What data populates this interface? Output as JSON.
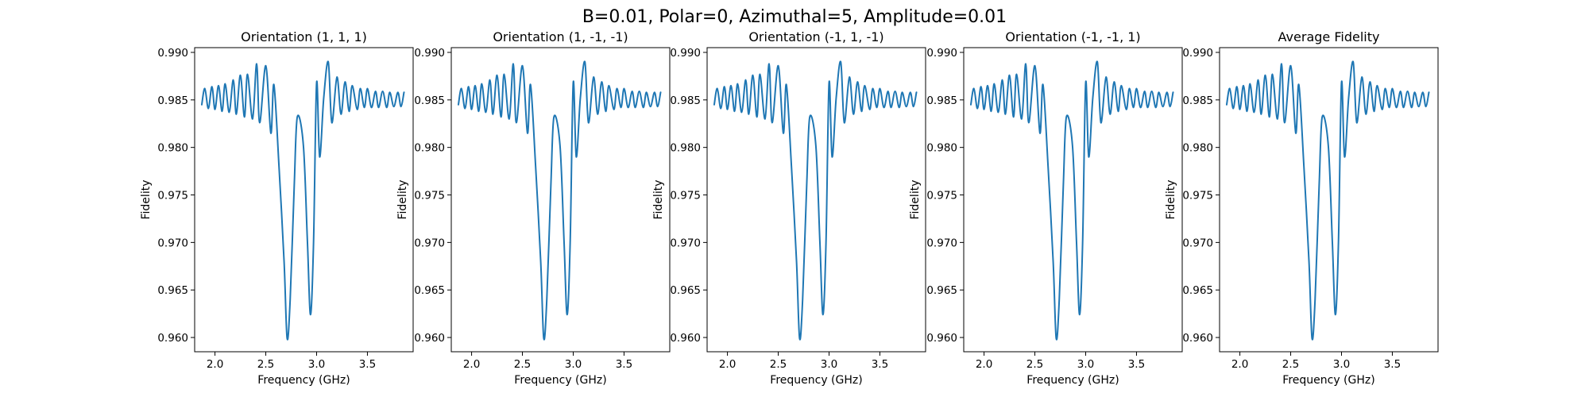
{
  "figure": {
    "suptitle": "B=0.01, Polar=0, Azimuthal=5, Amplitude=0.01"
  },
  "colors": {
    "line": "#1f77b4",
    "frame": "#000000",
    "background": "#ffffff"
  },
  "chart_data": [
    {
      "type": "line",
      "title": "Orientation (1, 1, 1)",
      "xlabel": "Frequency (GHz)",
      "ylabel": "Fidelity",
      "xlim": [
        1.8,
        3.95
      ],
      "ylim": [
        0.9585,
        0.9905
      ],
      "xticks": [
        "2.0",
        "2.5",
        "3.0",
        "3.5"
      ],
      "yticks": [
        "0.960",
        "0.965",
        "0.970",
        "0.975",
        "0.980",
        "0.985",
        "0.990"
      ],
      "grid": false,
      "legend": "none",
      "series": [
        {
          "x": [
            1.87,
            1.9,
            1.935,
            1.97,
            2.0,
            2.035,
            2.07,
            2.1,
            2.14,
            2.18,
            2.21,
            2.25,
            2.29,
            2.32,
            2.37,
            2.41,
            2.44,
            2.5,
            2.55,
            2.58,
            2.63,
            2.68,
            2.71,
            2.74,
            2.78,
            2.81,
            2.87,
            2.91,
            2.94,
            2.97,
            3.0,
            3.03,
            3.07,
            3.115,
            3.15,
            3.2,
            3.24,
            3.28,
            3.32,
            3.35,
            3.4,
            3.43,
            3.47,
            3.5,
            3.54,
            3.58,
            3.61,
            3.65,
            3.69,
            3.72,
            3.76,
            3.8,
            3.83,
            3.86
          ],
          "y": [
            0.9845,
            0.9862,
            0.9841,
            0.9864,
            0.984,
            0.9865,
            0.9838,
            0.9867,
            0.9837,
            0.9871,
            0.9835,
            0.9876,
            0.9832,
            0.9877,
            0.983,
            0.9888,
            0.9826,
            0.9886,
            0.9815,
            0.9866,
            0.978,
            0.968,
            0.9599,
            0.964,
            0.976,
            0.9832,
            0.9802,
            0.97,
            0.9624,
            0.97,
            0.9868,
            0.979,
            0.9852,
            0.989,
            0.9826,
            0.9874,
            0.9835,
            0.9869,
            0.9838,
            0.9865,
            0.984,
            0.9862,
            0.9842,
            0.9862,
            0.9842,
            0.9859,
            0.9842,
            0.9859,
            0.9842,
            0.9858,
            0.9843,
            0.9858,
            0.9843,
            0.9858
          ]
        }
      ]
    },
    {
      "type": "line",
      "title": "Orientation (1, -1, -1)",
      "xlabel": "Frequency (GHz)",
      "ylabel": "Fidelity",
      "xlim": [
        1.8,
        3.95
      ],
      "ylim": [
        0.9585,
        0.9905
      ],
      "xticks": [
        "2.0",
        "2.5",
        "3.0",
        "3.5"
      ],
      "yticks": [
        "0.960",
        "0.965",
        "0.970",
        "0.975",
        "0.980",
        "0.985",
        "0.990"
      ],
      "grid": false,
      "legend": "none",
      "series": [
        {
          "x": [
            1.87,
            1.9,
            1.935,
            1.97,
            2.0,
            2.035,
            2.07,
            2.1,
            2.14,
            2.18,
            2.21,
            2.25,
            2.29,
            2.32,
            2.37,
            2.41,
            2.44,
            2.5,
            2.55,
            2.58,
            2.63,
            2.68,
            2.71,
            2.74,
            2.78,
            2.81,
            2.87,
            2.91,
            2.94,
            2.97,
            3.0,
            3.03,
            3.07,
            3.115,
            3.15,
            3.2,
            3.24,
            3.28,
            3.32,
            3.35,
            3.4,
            3.43,
            3.47,
            3.5,
            3.54,
            3.58,
            3.61,
            3.65,
            3.69,
            3.72,
            3.76,
            3.8,
            3.83,
            3.86
          ],
          "y": [
            0.9845,
            0.9862,
            0.9841,
            0.9864,
            0.984,
            0.9865,
            0.9838,
            0.9867,
            0.9837,
            0.9871,
            0.9835,
            0.9876,
            0.9832,
            0.9877,
            0.983,
            0.9888,
            0.9826,
            0.9886,
            0.9815,
            0.9866,
            0.978,
            0.968,
            0.9599,
            0.964,
            0.976,
            0.9832,
            0.9802,
            0.97,
            0.9624,
            0.97,
            0.9868,
            0.979,
            0.9852,
            0.989,
            0.9826,
            0.9874,
            0.9835,
            0.9869,
            0.9838,
            0.9865,
            0.984,
            0.9862,
            0.9842,
            0.9862,
            0.9842,
            0.9859,
            0.9842,
            0.9859,
            0.9842,
            0.9858,
            0.9843,
            0.9858,
            0.9843,
            0.9858
          ]
        }
      ]
    },
    {
      "type": "line",
      "title": "Orientation (-1, 1, -1)",
      "xlabel": "Frequency (GHz)",
      "ylabel": "Fidelity",
      "xlim": [
        1.8,
        3.95
      ],
      "ylim": [
        0.9585,
        0.9905
      ],
      "xticks": [
        "2.0",
        "2.5",
        "3.0",
        "3.5"
      ],
      "yticks": [
        "0.960",
        "0.965",
        "0.970",
        "0.975",
        "0.980",
        "0.985",
        "0.990"
      ],
      "grid": false,
      "legend": "none",
      "series": [
        {
          "x": [
            1.87,
            1.9,
            1.935,
            1.97,
            2.0,
            2.035,
            2.07,
            2.1,
            2.14,
            2.18,
            2.21,
            2.25,
            2.29,
            2.32,
            2.37,
            2.41,
            2.44,
            2.5,
            2.55,
            2.58,
            2.63,
            2.68,
            2.71,
            2.74,
            2.78,
            2.81,
            2.87,
            2.91,
            2.94,
            2.97,
            3.0,
            3.03,
            3.07,
            3.115,
            3.15,
            3.2,
            3.24,
            3.28,
            3.32,
            3.35,
            3.4,
            3.43,
            3.47,
            3.5,
            3.54,
            3.58,
            3.61,
            3.65,
            3.69,
            3.72,
            3.76,
            3.8,
            3.83,
            3.86
          ],
          "y": [
            0.9845,
            0.9862,
            0.9841,
            0.9864,
            0.984,
            0.9865,
            0.9838,
            0.9867,
            0.9837,
            0.9871,
            0.9835,
            0.9876,
            0.9832,
            0.9877,
            0.983,
            0.9888,
            0.9826,
            0.9886,
            0.9815,
            0.9866,
            0.978,
            0.968,
            0.9599,
            0.964,
            0.976,
            0.9832,
            0.9802,
            0.97,
            0.9624,
            0.97,
            0.9868,
            0.979,
            0.9852,
            0.989,
            0.9826,
            0.9874,
            0.9835,
            0.9869,
            0.9838,
            0.9865,
            0.984,
            0.9862,
            0.9842,
            0.9862,
            0.9842,
            0.9859,
            0.9842,
            0.9859,
            0.9842,
            0.9858,
            0.9843,
            0.9858,
            0.9843,
            0.9858
          ]
        }
      ]
    },
    {
      "type": "line",
      "title": "Orientation (-1, -1, 1)",
      "xlabel": "Frequency (GHz)",
      "ylabel": "Fidelity",
      "xlim": [
        1.8,
        3.95
      ],
      "ylim": [
        0.9585,
        0.9905
      ],
      "xticks": [
        "2.0",
        "2.5",
        "3.0",
        "3.5"
      ],
      "yticks": [
        "0.960",
        "0.965",
        "0.970",
        "0.975",
        "0.980",
        "0.985",
        "0.990"
      ],
      "grid": false,
      "legend": "none",
      "series": [
        {
          "x": [
            1.87,
            1.9,
            1.935,
            1.97,
            2.0,
            2.035,
            2.07,
            2.1,
            2.14,
            2.18,
            2.21,
            2.25,
            2.29,
            2.32,
            2.37,
            2.41,
            2.44,
            2.5,
            2.55,
            2.58,
            2.63,
            2.68,
            2.71,
            2.74,
            2.78,
            2.81,
            2.87,
            2.91,
            2.94,
            2.97,
            3.0,
            3.03,
            3.07,
            3.115,
            3.15,
            3.2,
            3.24,
            3.28,
            3.32,
            3.35,
            3.4,
            3.43,
            3.47,
            3.5,
            3.54,
            3.58,
            3.61,
            3.65,
            3.69,
            3.72,
            3.76,
            3.8,
            3.83,
            3.86
          ],
          "y": [
            0.9845,
            0.9862,
            0.9841,
            0.9864,
            0.984,
            0.9865,
            0.9838,
            0.9867,
            0.9837,
            0.9871,
            0.9835,
            0.9876,
            0.9832,
            0.9877,
            0.983,
            0.9888,
            0.9826,
            0.9886,
            0.9815,
            0.9866,
            0.978,
            0.968,
            0.9599,
            0.964,
            0.976,
            0.9832,
            0.9802,
            0.97,
            0.9624,
            0.97,
            0.9868,
            0.979,
            0.9852,
            0.989,
            0.9826,
            0.9874,
            0.9835,
            0.9869,
            0.9838,
            0.9865,
            0.984,
            0.9862,
            0.9842,
            0.9862,
            0.9842,
            0.9859,
            0.9842,
            0.9859,
            0.9842,
            0.9858,
            0.9843,
            0.9858,
            0.9843,
            0.9858
          ]
        }
      ]
    },
    {
      "type": "line",
      "title": "Average Fidelity",
      "xlabel": "Frequency (GHz)",
      "ylabel": "Fidelity",
      "xlim": [
        1.8,
        3.95
      ],
      "ylim": [
        0.9585,
        0.9905
      ],
      "xticks": [
        "2.0",
        "2.5",
        "3.0",
        "3.5"
      ],
      "yticks": [
        "0.960",
        "0.965",
        "0.970",
        "0.975",
        "0.980",
        "0.985",
        "0.990"
      ],
      "grid": false,
      "legend": "none",
      "series": [
        {
          "x": [
            1.87,
            1.9,
            1.935,
            1.97,
            2.0,
            2.035,
            2.07,
            2.1,
            2.14,
            2.18,
            2.21,
            2.25,
            2.29,
            2.32,
            2.37,
            2.41,
            2.44,
            2.5,
            2.55,
            2.58,
            2.63,
            2.68,
            2.71,
            2.74,
            2.78,
            2.81,
            2.87,
            2.91,
            2.94,
            2.97,
            3.0,
            3.03,
            3.07,
            3.115,
            3.15,
            3.2,
            3.24,
            3.28,
            3.32,
            3.35,
            3.4,
            3.43,
            3.47,
            3.5,
            3.54,
            3.58,
            3.61,
            3.65,
            3.69,
            3.72,
            3.76,
            3.8,
            3.83,
            3.86
          ],
          "y": [
            0.9845,
            0.9862,
            0.9841,
            0.9864,
            0.984,
            0.9865,
            0.9838,
            0.9867,
            0.9837,
            0.9871,
            0.9835,
            0.9876,
            0.9832,
            0.9877,
            0.983,
            0.9888,
            0.9826,
            0.9886,
            0.9815,
            0.9866,
            0.978,
            0.968,
            0.9599,
            0.964,
            0.976,
            0.9832,
            0.9802,
            0.97,
            0.9624,
            0.97,
            0.9868,
            0.979,
            0.9852,
            0.989,
            0.9826,
            0.9874,
            0.9835,
            0.9869,
            0.9838,
            0.9865,
            0.984,
            0.9862,
            0.9842,
            0.9862,
            0.9842,
            0.9859,
            0.9842,
            0.9859,
            0.9842,
            0.9858,
            0.9843,
            0.9858,
            0.9843,
            0.9858
          ]
        }
      ]
    }
  ]
}
